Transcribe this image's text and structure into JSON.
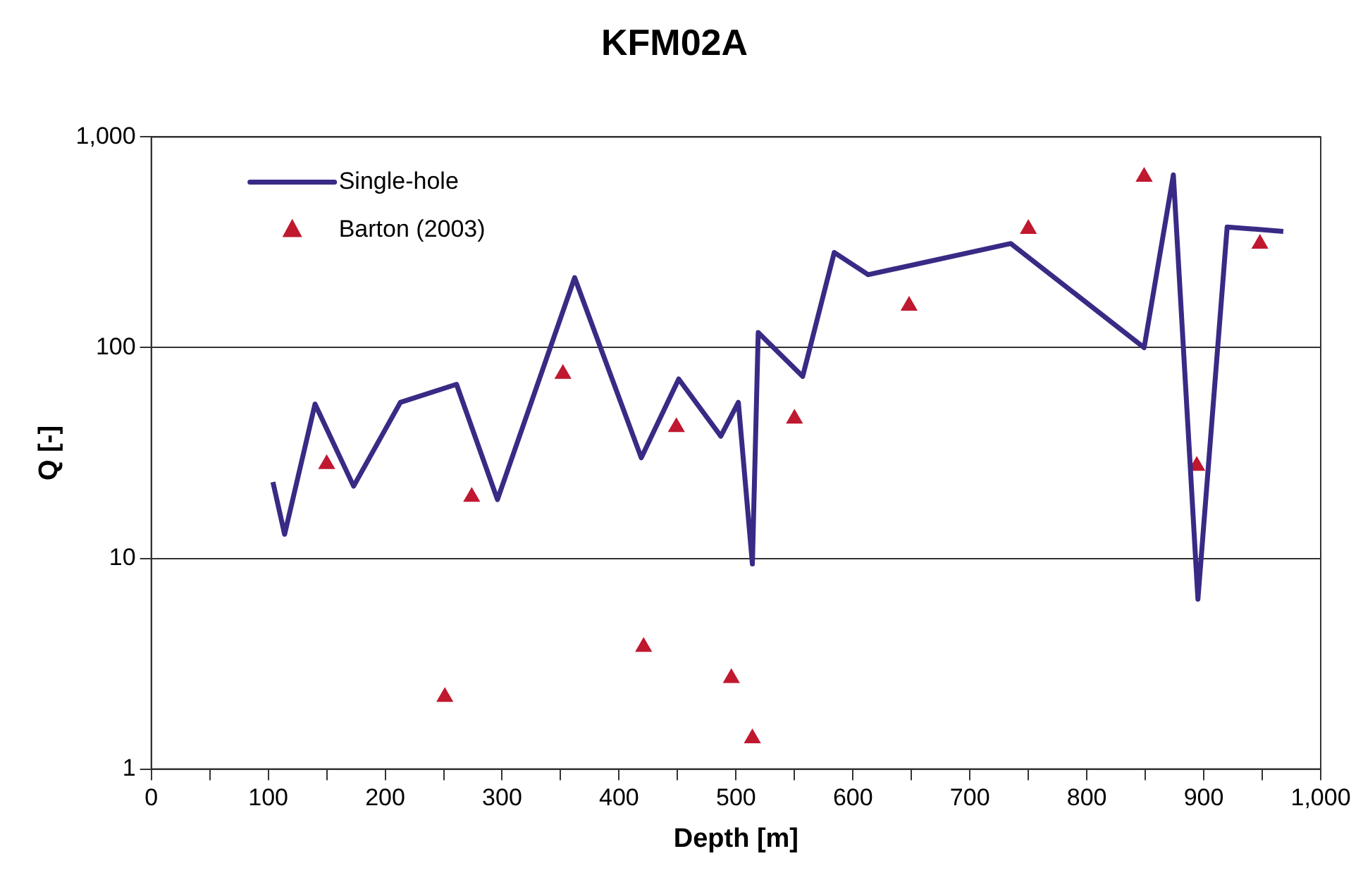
{
  "chart_data": {
    "type": "line",
    "title": "KFM02A",
    "xlabel": "Depth [m]",
    "ylabel": "Q [-]",
    "series": [
      {
        "name": "Single-hole",
        "color": "#3a2a85",
        "marker": "none",
        "x": [
          104,
          114,
          140,
          173,
          213,
          261,
          296,
          362,
          419,
          451,
          487,
          502,
          514,
          519,
          557,
          584,
          613,
          735,
          849,
          874,
          895,
          920,
          968
        ],
        "values": [
          23,
          13,
          54,
          22,
          55,
          67,
          19,
          215,
          30,
          71,
          38,
          55,
          9.4,
          118,
          73,
          283,
          222,
          312,
          100,
          661,
          6.4,
          374,
          356
        ]
      },
      {
        "name": "Barton (2003)",
        "type": "scatter",
        "color": "#c0182f",
        "marker": "triangle",
        "x": [
          150,
          251,
          274,
          352,
          421,
          449,
          496,
          514,
          550,
          648,
          750,
          849,
          894,
          948
        ],
        "values": [
          28,
          2.2,
          19.6,
          75,
          3.8,
          42,
          2.7,
          1.4,
          46,
          158,
          366,
          647,
          27.5,
          311
        ]
      }
    ],
    "xlim": [
      0,
      1000
    ],
    "xticks": [
      0,
      {
        "value": 50,
        "label": null
      },
      100,
      {
        "value": 150,
        "label": null
      },
      200,
      {
        "value": 250,
        "label": null
      },
      300,
      {
        "value": 350,
        "label": null
      },
      400,
      {
        "value": 450,
        "label": null
      },
      500,
      {
        "value": 550,
        "label": null
      },
      600,
      {
        "value": 650,
        "label": null
      },
      700,
      {
        "value": 750,
        "label": null
      },
      800,
      {
        "value": 850,
        "label": null
      },
      900,
      {
        "value": 950,
        "label": null
      },
      {
        "value": 1000,
        "label": "1,000"
      }
    ],
    "ylim": [
      1,
      1000
    ],
    "yticks": [
      1,
      10,
      100,
      {
        "value": 1000,
        "label": "1,000"
      }
    ],
    "log": "y",
    "grid": "y",
    "legend": "top left"
  }
}
